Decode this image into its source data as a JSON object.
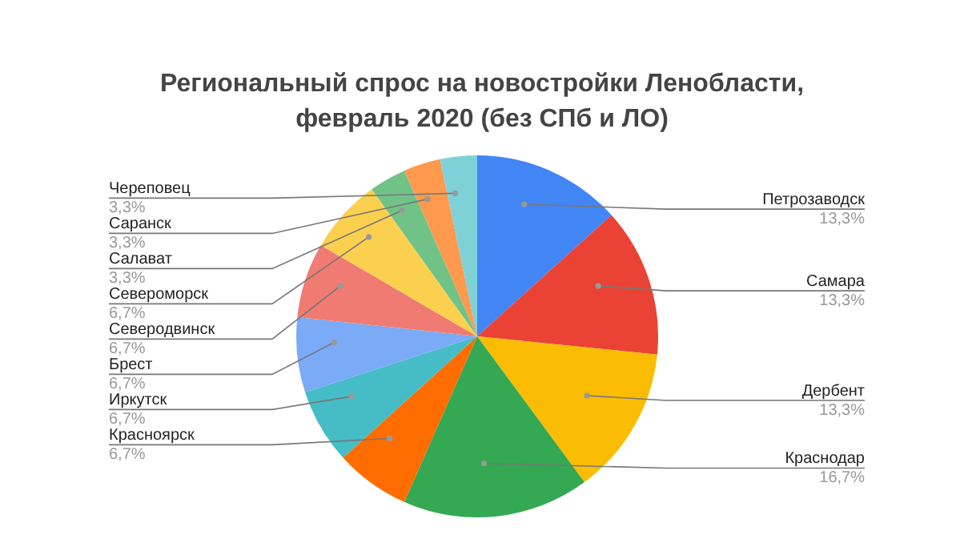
{
  "chart_data": {
    "type": "pie",
    "title": "Региональный спрос на новостройки Ленобласти, февраль 2020 (без СПб и ЛО)",
    "categories": [
      "Петрозаводск",
      "Самара",
      "Дербент",
      "Краснодар",
      "Красноярск",
      "Иркутск",
      "Брест",
      "Северодвинск",
      "Североморск",
      "Салават",
      "Саранск",
      "Череповец"
    ],
    "values": [
      13.3,
      13.3,
      13.3,
      16.7,
      6.7,
      6.7,
      6.7,
      6.7,
      6.7,
      3.3,
      3.3,
      3.3
    ],
    "colors": [
      "#4285f4",
      "#ea4335",
      "#fbbc04",
      "#34a853",
      "#ff6d01",
      "#46bdc6",
      "#7baaf7",
      "#f07b72",
      "#fcd04f",
      "#71c287",
      "#ff994d",
      "#7ed1d7"
    ],
    "value_labels": [
      "13,3%",
      "13,3%",
      "13,3%",
      "16,7%",
      "6,7%",
      "6,7%",
      "6,7%",
      "6,7%",
      "6,7%",
      "3,3%",
      "3,3%",
      "3,3%"
    ]
  }
}
